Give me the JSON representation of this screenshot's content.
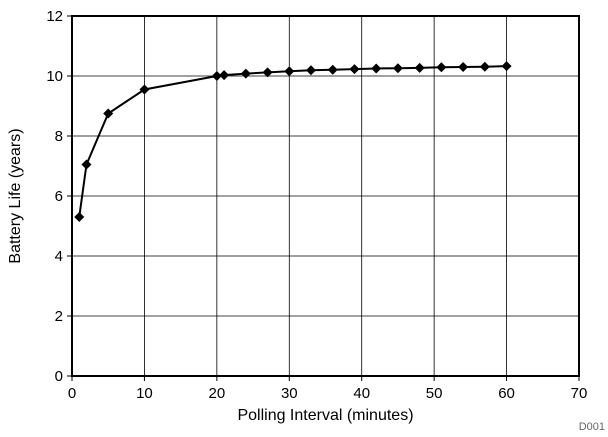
{
  "chart_data": {
    "type": "line",
    "title": "",
    "xlabel": "Polling Interval (minutes)",
    "ylabel": "Battery Life (years)",
    "xlim": [
      0,
      70
    ],
    "ylim": [
      0,
      12
    ],
    "xticks": [
      0,
      10,
      20,
      30,
      40,
      50,
      60,
      70
    ],
    "yticks": [
      0,
      2,
      4,
      6,
      8,
      10,
      12
    ],
    "grid": true,
    "marker": "diamond",
    "series": [
      {
        "x": [
          1,
          2,
          5,
          10,
          20,
          21,
          24,
          27,
          30,
          33,
          36,
          39,
          42,
          45,
          48,
          51,
          54,
          57,
          60
        ],
        "y": [
          5.3,
          7.05,
          8.75,
          9.55,
          10.0,
          10.03,
          10.08,
          10.12,
          10.16,
          10.19,
          10.21,
          10.23,
          10.25,
          10.26,
          10.27,
          10.29,
          10.3,
          10.31,
          10.33
        ]
      }
    ]
  },
  "figure_id": "D001",
  "colors": {
    "line": "#000000",
    "grid": "#000000",
    "background": "#ffffff"
  }
}
